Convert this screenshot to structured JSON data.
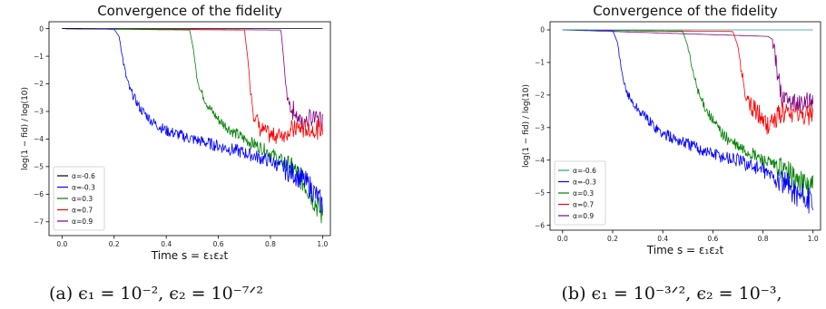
{
  "chart_data": [
    {
      "type": "line",
      "title": "Convergence of the fidelity",
      "xlabel": "Time s = ε₁ε₂t",
      "ylabel": "log(1 − fid) / log(10)",
      "xlim": [
        -0.05,
        1.03
      ],
      "ylim": [
        -7.5,
        0.25
      ],
      "xticks": [
        "0.0",
        "0.2",
        "0.4",
        "0.6",
        "0.8",
        "1.0"
      ],
      "yticks": [
        "0",
        "−1",
        "−2",
        "−3",
        "−4",
        "−5",
        "−6",
        "−7"
      ],
      "grid": false,
      "legend_position": "lower-left",
      "caption": "(a) ϵ₁ = 10⁻², ϵ₂ = 10⁻⁷ᐟ²",
      "series": [
        {
          "name": "α=-0.6",
          "color": "#000000",
          "x": [
            0.0,
            1.0
          ],
          "y": [
            0.0,
            0.0
          ]
        },
        {
          "name": "α=-0.3",
          "color": "#0000ff",
          "x": [
            0.0,
            0.2,
            0.22,
            0.235,
            0.245,
            0.26,
            0.3,
            0.35,
            0.4,
            0.5,
            0.6,
            0.7,
            0.8,
            0.9,
            0.95,
            1.0
          ],
          "y": [
            0.0,
            -0.02,
            -0.3,
            -1.2,
            -1.7,
            -2.2,
            -2.9,
            -3.4,
            -3.7,
            -4.0,
            -4.25,
            -4.5,
            -4.8,
            -5.3,
            -5.7,
            -6.4
          ]
        },
        {
          "name": "α=0.3",
          "color": "#008000",
          "x": [
            0.0,
            0.49,
            0.505,
            0.515,
            0.53,
            0.56,
            0.6,
            0.65,
            0.7,
            0.8,
            0.9,
            0.95,
            1.0
          ],
          "y": [
            0.0,
            -0.05,
            -0.8,
            -1.6,
            -2.2,
            -2.8,
            -3.3,
            -3.7,
            -4.0,
            -4.5,
            -5.2,
            -5.9,
            -6.8
          ]
        },
        {
          "name": "α=0.7",
          "color": "#ff0000",
          "x": [
            0.0,
            0.7,
            0.712,
            0.722,
            0.735,
            0.76,
            0.8,
            0.85,
            0.9,
            0.95,
            1.0
          ],
          "y": [
            0.0,
            -0.05,
            -1.0,
            -2.0,
            -3.0,
            -3.6,
            -3.9,
            -3.8,
            -3.6,
            -3.65,
            -3.65
          ]
        },
        {
          "name": "α=0.9",
          "color": "#800080",
          "x": [
            0.0,
            0.84,
            0.85,
            0.858,
            0.87,
            0.9,
            0.93,
            0.97,
            1.0
          ],
          "y": [
            0.0,
            -0.05,
            -1.0,
            -2.0,
            -2.7,
            -3.2,
            -3.4,
            -3.2,
            -3.3
          ]
        }
      ]
    },
    {
      "type": "line",
      "title": "Convergence of the fidelity",
      "xlabel": "Time s = ε₁ε₂t",
      "ylabel": "log(1 − fid) / log(10)",
      "xlim": [
        -0.05,
        1.03
      ],
      "ylim": [
        -6.15,
        0.25
      ],
      "xticks": [
        "0.0",
        "0.2",
        "0.4",
        "0.6",
        "0.8",
        "1.0"
      ],
      "yticks": [
        "0",
        "−1",
        "−2",
        "−3",
        "−4",
        "−5",
        "−6"
      ],
      "grid": false,
      "legend_position": "lower-left",
      "caption": "(b) ϵ₁ = 10⁻³ᐟ², ϵ₂ = 10⁻³,",
      "series": [
        {
          "name": "α=-0.6",
          "color": "#1f9e9e",
          "x": [
            0.0,
            1.0
          ],
          "y": [
            0.0,
            0.0
          ]
        },
        {
          "name": "α=-0.3",
          "color": "#0000ff",
          "x": [
            0.0,
            0.2,
            0.22,
            0.235,
            0.25,
            0.28,
            0.32,
            0.4,
            0.5,
            0.6,
            0.7,
            0.8,
            0.9,
            0.95,
            1.0
          ],
          "y": [
            0.0,
            -0.02,
            -0.4,
            -1.3,
            -1.8,
            -2.25,
            -2.6,
            -3.2,
            -3.5,
            -3.8,
            -4.0,
            -4.3,
            -4.8,
            -5.1,
            -5.3
          ]
        },
        {
          "name": "α=0.3",
          "color": "#008000",
          "x": [
            0.0,
            0.48,
            0.5,
            0.52,
            0.55,
            0.6,
            0.65,
            0.7,
            0.8,
            0.9,
            0.95,
            1.0
          ],
          "y": [
            0.0,
            -0.05,
            -0.5,
            -1.3,
            -2.1,
            -2.8,
            -3.3,
            -3.6,
            -4.0,
            -4.4,
            -4.7,
            -4.8
          ]
        },
        {
          "name": "α=0.7",
          "color": "#ff0000",
          "x": [
            0.0,
            0.68,
            0.7,
            0.72,
            0.74,
            0.78,
            0.82,
            0.86,
            0.9,
            0.95,
            1.0
          ],
          "y": [
            0.0,
            -0.05,
            -0.5,
            -1.6,
            -2.2,
            -2.6,
            -3.0,
            -2.6,
            -2.6,
            -2.65,
            -2.6
          ]
        },
        {
          "name": "α=0.9",
          "color": "#800080",
          "x": [
            0.0,
            0.82,
            0.84,
            0.856,
            0.87,
            0.9,
            0.93,
            0.97,
            1.0
          ],
          "y": [
            0.0,
            -0.2,
            -0.3,
            -1.2,
            -2.0,
            -2.2,
            -2.25,
            -2.2,
            -2.2
          ]
        }
      ]
    }
  ]
}
